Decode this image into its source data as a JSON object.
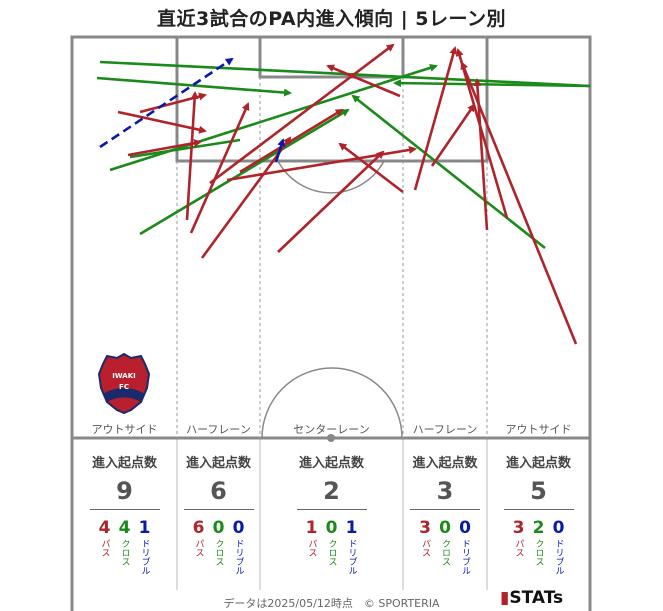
{
  "title": "直近3試合のPA内進入傾向 | 5レーン別",
  "lanes": [
    {
      "label": "アウトサイド",
      "count_label": "進入起点数",
      "total": "9",
      "pass": "4",
      "cross": "4",
      "dribble": "1"
    },
    {
      "label": "ハーフレーン",
      "count_label": "進入起点数",
      "total": "6",
      "pass": "6",
      "cross": "0",
      "dribble": "0"
    },
    {
      "label": "センターレーン",
      "count_label": "進入起点数",
      "total": "2",
      "pass": "1",
      "cross": "0",
      "dribble": "1"
    },
    {
      "label": "ハーフレーン",
      "count_label": "進入起点数",
      "total": "3",
      "pass": "3",
      "cross": "0",
      "dribble": "0"
    },
    {
      "label": "アウトサイド",
      "count_label": "進入起点数",
      "total": "5",
      "pass": "3",
      "cross": "2",
      "dribble": "0"
    }
  ],
  "legend": {
    "pass": "パス",
    "cross": "クロス",
    "dribble": "ドリブル"
  },
  "crest": {
    "top": "IWAKI",
    "bottom": "FC"
  },
  "footer": "データは2025/05/12時点　© SPORTERIA",
  "logo": "STATs",
  "colors": {
    "pass": "#b0232a",
    "cross": "#1a8a1a",
    "dribble": "#0a1aa8",
    "line": "#888888"
  }
}
